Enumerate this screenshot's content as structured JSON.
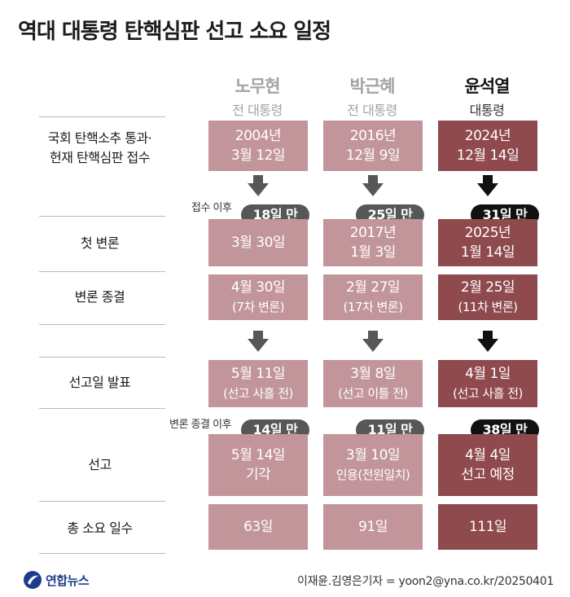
{
  "title": "역대 대통령 탄핵심판 선고 소요 일정",
  "columns": [
    {
      "name": "노무현",
      "role": "전 대통령"
    },
    {
      "name": "박근혜",
      "role": "전 대통령"
    },
    {
      "name": "윤석열",
      "role": "대통령"
    }
  ],
  "rows": [
    {
      "label_line1": "국회 탄핵소추 통과·",
      "label_line2": "헌재 탄핵심판 접수",
      "cells": [
        [
          "2004년",
          "3월 12일"
        ],
        [
          "2016년",
          "12월 9일"
        ],
        [
          "2024년",
          "12월 14일"
        ]
      ]
    },
    {
      "label_line1": "첫 변론",
      "label_line2": "",
      "cells": [
        [
          "3월 30일",
          ""
        ],
        [
          "2017년",
          "1월 3일"
        ],
        [
          "2025년",
          "1월 14일"
        ]
      ]
    },
    {
      "label_line1": "변론 종결",
      "label_line2": "",
      "cells": [
        [
          "4월 30일",
          "(7차 변론)"
        ],
        [
          "2월 27일",
          "(17차 변론)"
        ],
        [
          "2월 25일",
          "(11차 변론)"
        ]
      ]
    },
    {
      "label_line1": "선고일 발표",
      "label_line2": "",
      "cells": [
        [
          "5월 11일",
          "(선고 사흘 전)"
        ],
        [
          "3월 8일",
          "(선고 이틀 전)"
        ],
        [
          "4월 1일",
          "(선고 사흘 전)"
        ]
      ]
    },
    {
      "label_line1": "선고",
      "label_line2": "",
      "cells": [
        [
          "5월 14일",
          "기각"
        ],
        [
          "3월 10일",
          "인용(전원일치)"
        ],
        [
          "4월 4일",
          "선고 예정"
        ]
      ]
    },
    {
      "label_line1": "총 소요 일수",
      "label_line2": "",
      "cells": [
        [
          "63일",
          ""
        ],
        [
          "91일",
          ""
        ],
        [
          "111일",
          ""
        ]
      ]
    }
  ],
  "intervals": {
    "after_receipt": {
      "note": "접수 이후",
      "values": [
        "18일 만",
        "25일 만",
        "31일 만"
      ]
    },
    "after_closing": {
      "note": "변론 종결 이후",
      "values": [
        "14일 만",
        "11일 만",
        "38일 만"
      ]
    }
  },
  "colors": {
    "past_cell": "#c2959a",
    "current_cell": "#8f4a4e",
    "past_arrow": "#575757",
    "current_arrow": "#111111"
  },
  "footer": {
    "logo_text": "연합뉴스",
    "credit": "이재윤.김영은기자 = yoon2@yna.co.kr/20250401"
  }
}
